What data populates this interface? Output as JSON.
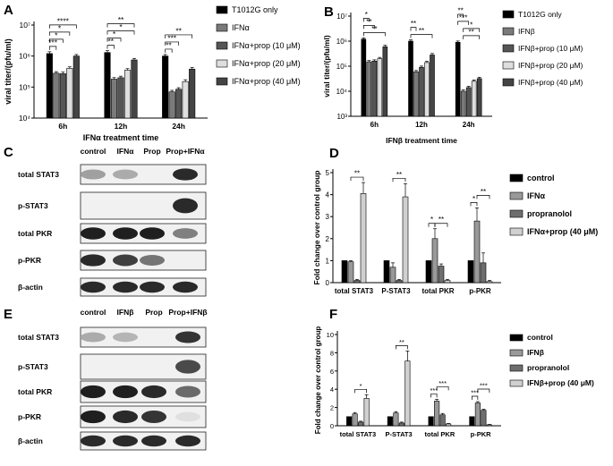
{
  "panels": {
    "A": {
      "letter": "A",
      "chart_data": {
        "type": "bar",
        "ylabel": "viral titer/(pfu/ml)",
        "xlabel": "IFNα treatment time",
        "yscale": "log",
        "ylim": [
          10000,
          10000000
        ],
        "yticks": [
          "10⁴",
          "10⁵",
          "10⁶",
          "10⁷"
        ],
        "categories": [
          "6h",
          "12h",
          "24h"
        ],
        "series": [
          {
            "name": "T1012G only",
            "color": "#000000",
            "values": [
              1200000,
              1300000,
              1000000
            ],
            "err": [
              0.06,
              0.06,
              0.05
            ]
          },
          {
            "name": "IFNα",
            "color": "#7a7a7a",
            "values": [
              280000,
              180000,
              70000
            ],
            "err": [
              0.05,
              0.05,
              0.05
            ]
          },
          {
            "name": "IFNα+prop (10 μM)",
            "color": "#555555",
            "values": [
              270000,
              200000,
              85000
            ],
            "err": [
              0.05,
              0.05,
              0.05
            ]
          },
          {
            "name": "IFNα+prop (20 μM)",
            "color": "#dedede",
            "values": [
              400000,
              350000,
              150000
            ],
            "err": [
              0.05,
              0.05,
              0.06
            ]
          },
          {
            "name": "IFNα+prop (40 μM)",
            "color": "#444444",
            "values": [
              1000000,
              750000,
              380000
            ],
            "err": [
              0.05,
              0.05,
              0.05
            ]
          }
        ],
        "significance": [
          "***",
          "*",
          "*",
          "****",
          "**",
          "*",
          "*",
          "**",
          "**",
          "***",
          "**"
        ]
      }
    },
    "B": {
      "letter": "B",
      "chart_data": {
        "type": "bar",
        "ylabel": "viral titer/(pfu/ml)",
        "xlabel": "IFNβ treatment time",
        "yscale": "log",
        "ylim": [
          1000,
          10000000
        ],
        "yticks": [
          "10³",
          "10⁴",
          "10⁵",
          "10⁶",
          "10⁷"
        ],
        "categories": [
          "6h",
          "12h",
          "24h"
        ],
        "series": [
          {
            "name": "T1012G only",
            "color": "#000000",
            "values": [
              1200000,
              1000000,
              900000
            ],
            "err": [
              0.05,
              0.05,
              0.05
            ]
          },
          {
            "name": "IFNβ",
            "color": "#7a7a7a",
            "values": [
              150000,
              60000,
              10000
            ],
            "err": [
              0.05,
              0.05,
              0.05
            ]
          },
          {
            "name": "IFNβ+prop (10 μM)",
            "color": "#555555",
            "values": [
              160000,
              90000,
              14000
            ],
            "err": [
              0.05,
              0.05,
              0.05
            ]
          },
          {
            "name": "IFNβ+prop (20 μM)",
            "color": "#dedede",
            "values": [
              200000,
              140000,
              25000
            ],
            "err": [
              0.05,
              0.05,
              0.05
            ]
          },
          {
            "name": "IFNβ+prop (40 μM)",
            "color": "#444444",
            "values": [
              600000,
              280000,
              32000
            ],
            "err": [
              0.06,
              0.06,
              0.05
            ]
          }
        ],
        "significance": [
          "*",
          "**",
          "**",
          "**",
          "**",
          "**",
          "***",
          "*",
          "**"
        ]
      }
    },
    "C": {
      "letter": "C",
      "columns": [
        "control",
        "IFNα",
        "Prop",
        "Prop+IFNα"
      ],
      "rows": [
        "total STAT3",
        "p-STAT3",
        "total PKR",
        "p-PKR",
        "β-actin"
      ],
      "bands": [
        [
          0.35,
          0.3,
          0.0,
          0.9
        ],
        [
          0.0,
          0.0,
          0.0,
          0.9
        ],
        [
          0.95,
          0.95,
          0.95,
          0.5
        ],
        [
          0.9,
          0.8,
          0.55,
          0.0
        ],
        [
          0.9,
          0.9,
          0.9,
          0.9
        ]
      ]
    },
    "D": {
      "letter": "D",
      "chart_data": {
        "type": "bar",
        "ylabel": "Fold change over control group",
        "ylim": [
          0,
          5
        ],
        "yticks": [
          0,
          1,
          2,
          3,
          4,
          5
        ],
        "categories": [
          "total STAT3",
          "P-STAT3",
          "total PKR",
          "p-PKR"
        ],
        "series": [
          {
            "name": "control",
            "color": "#000000",
            "values": [
              1,
              1,
              1,
              1
            ],
            "err": [
              0,
              0,
              0,
              0
            ]
          },
          {
            "name": "IFNα",
            "color": "#999999",
            "values": [
              0.95,
              0.7,
              2.0,
              2.8
            ],
            "err": [
              0.05,
              0.2,
              0.45,
              0.6
            ]
          },
          {
            "name": "propranolol",
            "color": "#6e6e6e",
            "values": [
              0.1,
              0.1,
              0.75,
              0.9
            ],
            "err": [
              0.05,
              0.05,
              0.1,
              0.45
            ]
          },
          {
            "name": "IFNα+prop (40 μM)",
            "color": "#d0d0d0",
            "values": [
              4.05,
              3.9,
              0.1,
              0.05
            ],
            "err": [
              0.5,
              0.6,
              0.05,
              0.05
            ]
          }
        ],
        "significance": [
          "**",
          "**",
          "*",
          "**",
          "*",
          "**"
        ]
      }
    },
    "E": {
      "letter": "E",
      "columns": [
        "control",
        "IFNβ",
        "Prop",
        "Prop+IFNβ"
      ],
      "rows": [
        "total STAT3",
        "p-STAT3",
        "total PKR",
        "p-PKR",
        "β-actin"
      ],
      "bands": [
        [
          0.3,
          0.25,
          0.0,
          0.85
        ],
        [
          0.0,
          0.0,
          0.0,
          0.75
        ],
        [
          0.95,
          0.95,
          0.9,
          0.6
        ],
        [
          0.95,
          0.9,
          0.85,
          0.05
        ],
        [
          0.9,
          0.9,
          0.9,
          0.9
        ]
      ]
    },
    "F": {
      "letter": "F",
      "chart_data": {
        "type": "bar",
        "ylabel": "Fold change over control group",
        "ylim": [
          0,
          10
        ],
        "yticks": [
          0,
          2,
          4,
          6,
          8,
          10
        ],
        "categories": [
          "total STAT3",
          "P-STAT3",
          "total PKR",
          "p-PKR"
        ],
        "series": [
          {
            "name": "control",
            "color": "#000000",
            "values": [
              1,
              1,
              1,
              1
            ],
            "err": [
              0,
              0,
              0,
              0
            ]
          },
          {
            "name": "IFNβ",
            "color": "#999999",
            "values": [
              1.3,
              1.4,
              2.7,
              2.5
            ],
            "err": [
              0.15,
              0.15,
              0.2,
              0.15
            ]
          },
          {
            "name": "propranolol",
            "color": "#6e6e6e",
            "values": [
              0.4,
              0.3,
              1.2,
              1.7
            ],
            "err": [
              0.1,
              0.1,
              0.15,
              0.1
            ]
          },
          {
            "name": "IFNβ+prop (40 μM)",
            "color": "#d0d0d0",
            "values": [
              3.0,
              7.1,
              0.2,
              0.1
            ],
            "err": [
              0.4,
              1.1,
              0.05,
              0.05
            ]
          }
        ],
        "significance": [
          "*",
          "**",
          "***",
          "***",
          "***",
          "***"
        ]
      }
    }
  }
}
